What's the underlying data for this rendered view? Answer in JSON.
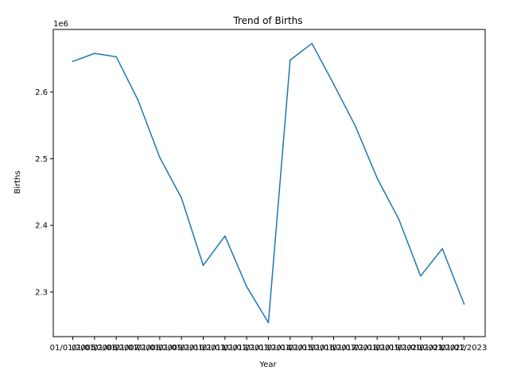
{
  "chart_data": {
    "type": "line",
    "title": "Trend of Births",
    "xlabel": "Year",
    "ylabel": "Births",
    "y_offset_label": "1e6",
    "categories": [
      "01/01/2005",
      "01/01/2006",
      "01/01/2007",
      "01/01/2008",
      "01/01/2009",
      "01/01/2010",
      "01/01/2011",
      "01/01/2012",
      "01/01/2013",
      "01/01/2014",
      "01/01/2015",
      "01/01/2016",
      "01/01/2017",
      "01/01/2018",
      "01/01/2019",
      "01/01/2020",
      "01/01/2021",
      "01/01/2022",
      "01/01/2023"
    ],
    "x_tick_labels": [
      "01/01/2005",
      "01/01/2006",
      "01/01/2007",
      "01/01/2008",
      "01/01/2009",
      "01/01/2010",
      "01/01/2011",
      "01/01/2012",
      "01/01/2013",
      "01/01/2014",
      "01/01/2015",
      "01/01/2016",
      "01/01/2017",
      "01/01/2018",
      "01/01/2019",
      "01/01/2020",
      "01/01/2021",
      "01/01/2022",
      "01/01/2023"
    ],
    "series": [
      {
        "values": [
          2646000,
          2658000,
          2653000,
          2588000,
          2502000,
          2441000,
          2340000,
          2384000,
          2308000,
          2254000,
          2648000,
          2673000,
          2612000,
          2549000,
          2471000,
          2409000,
          2324000,
          2365000,
          2282000
        ],
        "color": "#1f77b4"
      }
    ],
    "y_ticks": [
      2300000,
      2400000,
      2500000,
      2600000
    ],
    "y_tick_labels": [
      "2.3",
      "2.4",
      "2.5",
      "2.6"
    ],
    "ylim": [
      2233000,
      2694000
    ],
    "grid": false,
    "legend": "none"
  }
}
